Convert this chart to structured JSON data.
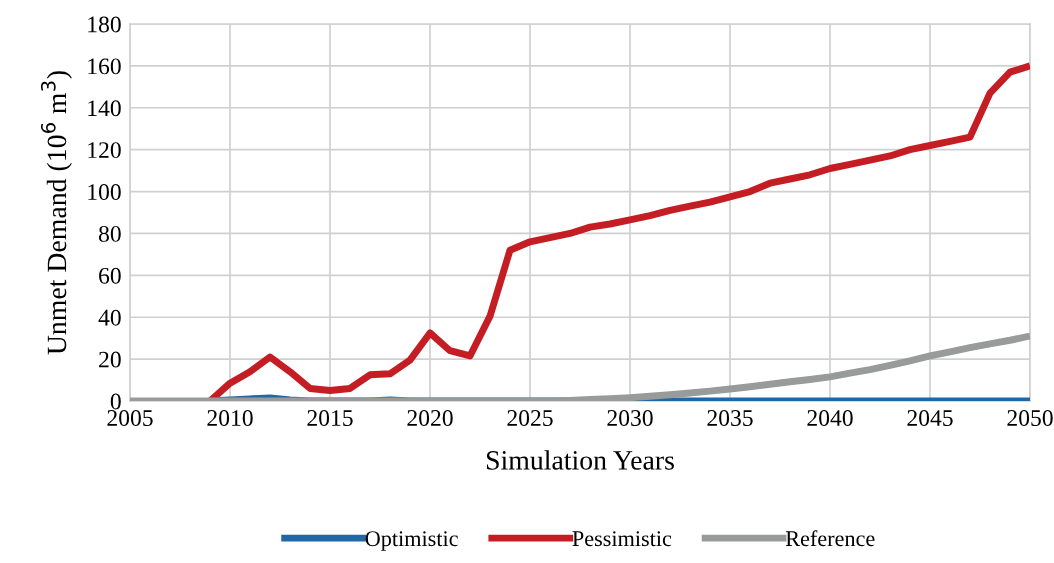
{
  "chart_data": {
    "type": "line",
    "xlabel": "Simulation Years",
    "ylabel": "Unmet Demand (10$^{6}$ m$^{3}$)",
    "x": [
      2005,
      2006,
      2007,
      2008,
      2009,
      2010,
      2011,
      2012,
      2013,
      2014,
      2015,
      2016,
      2017,
      2018,
      2019,
      2020,
      2021,
      2022,
      2023,
      2024,
      2025,
      2026,
      2027,
      2028,
      2029,
      2030,
      2031,
      2032,
      2033,
      2034,
      2035,
      2036,
      2037,
      2038,
      2039,
      2040,
      2041,
      2042,
      2043,
      2044,
      2045,
      2046,
      2047,
      2048,
      2049,
      2050
    ],
    "series": [
      {
        "name": "Optimistic",
        "color": "#2166a5",
        "values": [
          null,
          null,
          null,
          null,
          0,
          0.5,
          1,
          1.5,
          0.5,
          0,
          0,
          0,
          0,
          0.5,
          0,
          0,
          0,
          0,
          0,
          0,
          0,
          0,
          0,
          0,
          0,
          0,
          0,
          0,
          0,
          0,
          0,
          0,
          0,
          0,
          0,
          0,
          0,
          0,
          0,
          0,
          0,
          0,
          0,
          0,
          0,
          0
        ]
      },
      {
        "name": "Pessimistic",
        "color": "#c41e24",
        "values": [
          null,
          null,
          null,
          null,
          0,
          8.5,
          14,
          21,
          14,
          6,
          5,
          6,
          12.5,
          13,
          19.5,
          32.5,
          24,
          21.5,
          40.5,
          72,
          76,
          78,
          80,
          83,
          84.5,
          86.5,
          88.5,
          91,
          93,
          95,
          97.5,
          100,
          104,
          106,
          108,
          111,
          113,
          115,
          117,
          120,
          122,
          124,
          126,
          147,
          157,
          160
        ]
      },
      {
        "name": "Reference",
        "color": "#999b9b",
        "values": [
          0,
          0,
          0,
          0,
          0,
          0,
          0,
          0,
          0,
          0,
          0,
          0,
          0,
          0,
          0,
          0,
          0,
          0,
          0,
          0,
          0,
          0,
          0.3,
          0.7,
          1.1,
          1.6,
          2.3,
          3,
          3.8,
          4.7,
          5.7,
          6.8,
          8,
          9.2,
          10.3,
          11.5,
          13.3,
          15,
          17,
          19.2,
          21.5,
          23.5,
          25.5,
          27.3,
          29,
          31
        ]
      }
    ],
    "xlim": [
      2005,
      2050
    ],
    "xticks": [
      2005,
      2010,
      2015,
      2020,
      2025,
      2030,
      2035,
      2040,
      2045,
      2050
    ],
    "ylim": [
      0,
      180
    ],
    "yticks": [
      0,
      20,
      40,
      60,
      80,
      100,
      120,
      140,
      160,
      180
    ],
    "grid": true,
    "legend": "bottom",
    "marker": "none",
    "line_style": "solid"
  }
}
